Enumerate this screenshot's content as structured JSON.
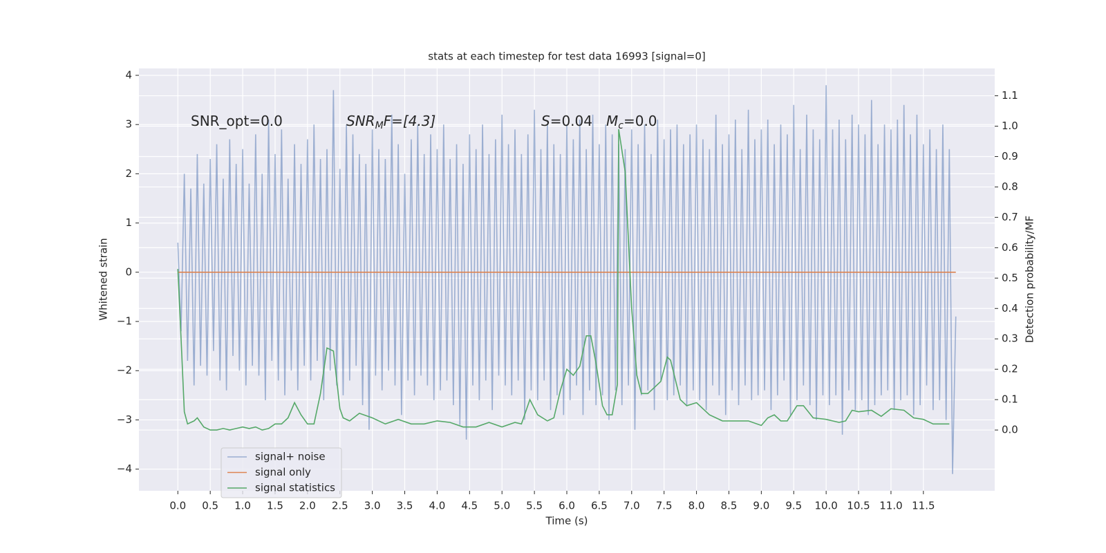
{
  "chart_data": {
    "type": "line",
    "title": "stats at each timestep for test data 16993 [signal=0]",
    "xlabel": "Time (s)",
    "ylabel": "Whitened strain",
    "y2label": "Detection probability/MF",
    "annotations": [
      [
        "SNR_opt=0.0"
      ],
      [
        "SNR",
        "M",
        "F=[4.3]"
      ],
      [
        "S",
        "=0.04"
      ],
      [
        "M",
        "c",
        "=0.0"
      ]
    ],
    "grid": true,
    "legend": "lower left",
    "background": "#eaeaf2",
    "xlim": [
      -0.6,
      12.6
    ],
    "ylim": [
      -4.44,
      4.14
    ],
    "y2lim": [
      -0.2,
      1.19
    ],
    "xticks": [
      {
        "value": 0,
        "label": "0.0"
      },
      0.5,
      {
        "value": 1,
        "label": "1.0"
      },
      1.5,
      {
        "value": 2,
        "label": "2.0"
      },
      2.5,
      {
        "value": 3,
        "label": "3.0"
      },
      3.5,
      {
        "value": 4,
        "label": "4.0"
      },
      4.5,
      {
        "value": 5,
        "label": "5.0"
      },
      5.5,
      {
        "value": 6,
        "label": "6.0"
      },
      6.5,
      {
        "value": 7,
        "label": "7.0"
      },
      7.5,
      {
        "value": 8,
        "label": "8.0"
      },
      8.5,
      {
        "value": 9,
        "label": "9.0"
      },
      9.5,
      {
        "value": 10,
        "label": "10.0"
      },
      10.5,
      {
        "value": 11,
        "label": "11.0"
      },
      11.5
    ],
    "yticks": [
      {
        "value": -4,
        "label": "−4"
      },
      {
        "value": -3,
        "label": "−3"
      },
      {
        "value": -2,
        "label": "−2"
      },
      {
        "value": -1,
        "label": "−1"
      },
      0,
      1,
      2,
      3,
      4
    ],
    "y2ticks": [
      {
        "value": 0,
        "label": "0.0"
      },
      0.1,
      0.2,
      0.3,
      0.4,
      0.5,
      0.6,
      0.7,
      0.8,
      0.9,
      {
        "value": 1,
        "label": "1.0"
      },
      1.1
    ],
    "series": [
      {
        "name": "signal+ noise",
        "color": "#4c72b0",
        "opacity": 0.5,
        "x": [
          0,
          0.05,
          0.1,
          0.15,
          0.2,
          0.25,
          0.3,
          0.35,
          0.4,
          0.45,
          0.5,
          0.55,
          0.6,
          0.65,
          0.7,
          0.75,
          0.8,
          0.85,
          0.9,
          0.95,
          1,
          1.05,
          1.1,
          1.15,
          1.2,
          1.25,
          1.3,
          1.35,
          1.4,
          1.45,
          1.5,
          1.55,
          1.6,
          1.65,
          1.7,
          1.75,
          1.8,
          1.85,
          1.9,
          1.95,
          2,
          2.05,
          2.1,
          2.15,
          2.2,
          2.25,
          2.3,
          2.35,
          2.4,
          2.45,
          2.5,
          2.55,
          2.6,
          2.65,
          2.7,
          2.75,
          2.8,
          2.85,
          2.9,
          2.95,
          3,
          3.05,
          3.1,
          3.15,
          3.2,
          3.25,
          3.3,
          3.35,
          3.4,
          3.45,
          3.5,
          3.55,
          3.6,
          3.65,
          3.7,
          3.75,
          3.8,
          3.85,
          3.9,
          3.95,
          4,
          4.05,
          4.1,
          4.15,
          4.2,
          4.25,
          4.3,
          4.35,
          4.4,
          4.45,
          4.5,
          4.55,
          4.6,
          4.65,
          4.7,
          4.75,
          4.8,
          4.85,
          4.9,
          4.95,
          5,
          5.05,
          5.1,
          5.15,
          5.2,
          5.25,
          5.3,
          5.35,
          5.4,
          5.45,
          5.5,
          5.55,
          5.6,
          5.65,
          5.7,
          5.75,
          5.8,
          5.85,
          5.9,
          5.95,
          6,
          6.05,
          6.1,
          6.15,
          6.2,
          6.25,
          6.3,
          6.35,
          6.4,
          6.45,
          6.5,
          6.55,
          6.6,
          6.65,
          6.7,
          6.75,
          6.8,
          6.85,
          6.9,
          6.95,
          7,
          7.05,
          7.1,
          7.15,
          7.2,
          7.25,
          7.3,
          7.35,
          7.4,
          7.45,
          7.5,
          7.55,
          7.6,
          7.65,
          7.7,
          7.75,
          7.8,
          7.85,
          7.9,
          7.95,
          8,
          8.05,
          8.1,
          8.15,
          8.2,
          8.25,
          8.3,
          8.35,
          8.4,
          8.45,
          8.5,
          8.55,
          8.6,
          8.65,
          8.7,
          8.75,
          8.8,
          8.85,
          8.9,
          8.95,
          9,
          9.05,
          9.1,
          9.15,
          9.2,
          9.25,
          9.3,
          9.35,
          9.4,
          9.45,
          9.5,
          9.55,
          9.6,
          9.65,
          9.7,
          9.75,
          9.8,
          9.85,
          9.9,
          9.95,
          10,
          10.05,
          10.1,
          10.15,
          10.2,
          10.25,
          10.3,
          10.35,
          10.4,
          10.45,
          10.5,
          10.55,
          10.6,
          10.65,
          10.7,
          10.75,
          10.8,
          10.85,
          10.9,
          10.95,
          11,
          11.05,
          11.1,
          11.15,
          11.2,
          11.25,
          11.3,
          11.35,
          11.4,
          11.45,
          11.5,
          11.55,
          11.6,
          11.65,
          11.7,
          11.75,
          11.8,
          11.85,
          11.9,
          11.95,
          12
        ],
        "values": [
          0.6,
          -1.2,
          2.0,
          -1.8,
          1.7,
          -2.3,
          2.4,
          -1.9,
          1.8,
          -2.1,
          2.3,
          -1.6,
          2.6,
          -2.2,
          1.9,
          -2.4,
          2.7,
          -1.7,
          2.2,
          -2.0,
          2.5,
          -2.3,
          1.8,
          -1.9,
          2.8,
          -2.1,
          2.0,
          -2.6,
          3.1,
          -1.8,
          2.4,
          -2.2,
          2.9,
          -2.5,
          1.9,
          -2.0,
          2.6,
          -2.4,
          2.2,
          -1.9,
          2.7,
          -2.2,
          3.0,
          -1.8,
          2.3,
          -2.6,
          2.5,
          -2.0,
          3.7,
          -2.3,
          2.1,
          -2.5,
          3.0,
          -2.2,
          2.8,
          -1.9,
          2.4,
          -2.7,
          2.2,
          -3.2,
          2.9,
          -2.1,
          2.5,
          -2.4,
          2.3,
          -2.0,
          3.2,
          -2.3,
          2.6,
          -2.9,
          2.0,
          -2.2,
          2.7,
          -2.5,
          3.0,
          -2.1,
          2.4,
          -2.3,
          2.8,
          -2.6,
          2.5,
          -2.4,
          3.0,
          -2.2,
          2.3,
          -2.7,
          2.6,
          -3.1,
          2.2,
          -3.4,
          2.8,
          -2.3,
          2.5,
          -2.6,
          3.0,
          -2.2,
          2.4,
          -2.8,
          2.7,
          -2.1,
          3.2,
          -2.3,
          2.6,
          -2.5,
          2.9,
          -2.2,
          2.4,
          -3.0,
          2.8,
          -2.4,
          3.3,
          -2.6,
          2.5,
          -2.2,
          3.0,
          -2.8,
          2.6,
          -2.5,
          2.4,
          -2.9,
          3.0,
          -2.6,
          2.7,
          -2.3,
          3.1,
          -2.9,
          2.5,
          -2.4,
          3.2,
          -2.7,
          2.6,
          -2.5,
          3.0,
          -3.0,
          2.8,
          -2.4,
          2.6,
          -2.7,
          2.5,
          -2.3,
          2.9,
          -3.2,
          2.6,
          -2.5,
          3.0,
          -2.4,
          2.4,
          -2.8,
          3.1,
          -2.2,
          2.7,
          -2.6,
          2.9,
          -2.5,
          3.0,
          -2.3,
          2.6,
          -2.7,
          2.8,
          -2.4,
          3.0,
          -2.6,
          2.7,
          -2.8,
          2.5,
          -2.3,
          3.2,
          -2.5,
          2.6,
          -2.9,
          2.8,
          -2.4,
          3.1,
          -2.7,
          2.5,
          -2.3,
          3.3,
          -2.6,
          2.7,
          -2.5,
          2.9,
          -2.4,
          3.1,
          -2.8,
          2.6,
          -2.5,
          3.0,
          -2.2,
          2.8,
          -2.9,
          3.4,
          -2.6,
          2.5,
          -2.3,
          3.2,
          -2.7,
          2.9,
          -3.0,
          2.7,
          -2.5,
          3.8,
          -2.7,
          2.9,
          -2.5,
          3.1,
          -3.3,
          2.7,
          -2.4,
          3.2,
          -2.8,
          3.0,
          -2.6,
          2.8,
          -2.9,
          3.5,
          -2.7,
          2.6,
          -2.5,
          3.0,
          -2.4,
          2.9,
          -2.8,
          3.1,
          -2.6,
          3.4,
          -2.5,
          2.8,
          -2.9,
          3.2,
          -2.7,
          2.6,
          -2.3,
          2.9,
          -2.8,
          2.5,
          -2.6,
          3.0,
          -3.0,
          2.5,
          -4.1,
          -0.9
        ]
      },
      {
        "name": "signal only",
        "color": "#dd8452",
        "opacity": 1,
        "x": [
          0,
          12
        ],
        "values": [
          0,
          0
        ]
      },
      {
        "name": "signal statistics",
        "color": "#55a868",
        "opacity": 1,
        "axis": "y2",
        "x": [
          0,
          0.05,
          0.1,
          0.15,
          0.25,
          0.3,
          0.4,
          0.5,
          0.6,
          0.7,
          0.8,
          0.9,
          1.0,
          1.1,
          1.2,
          1.3,
          1.4,
          1.5,
          1.6,
          1.7,
          1.8,
          1.9,
          2.0,
          2.1,
          2.2,
          2.3,
          2.4,
          2.5,
          2.55,
          2.65,
          2.8,
          3.0,
          3.2,
          3.4,
          3.6,
          3.8,
          4.0,
          4.2,
          4.4,
          4.6,
          4.8,
          5.0,
          5.2,
          5.3,
          5.43,
          5.55,
          5.7,
          5.8,
          5.9,
          6.0,
          6.1,
          6.2,
          6.3,
          6.37,
          6.45,
          6.55,
          6.62,
          6.7,
          6.78,
          6.8,
          6.9,
          7.0,
          7.08,
          7.15,
          7.25,
          7.35,
          7.45,
          7.55,
          7.6,
          7.75,
          7.85,
          8.0,
          8.2,
          8.4,
          8.6,
          8.8,
          9.0,
          9.1,
          9.2,
          9.3,
          9.4,
          9.55,
          9.65,
          9.8,
          10.0,
          10.2,
          10.3,
          10.4,
          10.5,
          10.7,
          10.85,
          11.0,
          11.2,
          11.35,
          11.5,
          11.65,
          11.8,
          11.9
        ],
        "values": [
          0.53,
          0.3,
          0.06,
          0.02,
          0.03,
          0.04,
          0.01,
          0.0,
          0.0,
          0.005,
          0.0,
          0.005,
          0.01,
          0.005,
          0.01,
          0.0,
          0.005,
          0.02,
          0.02,
          0.04,
          0.09,
          0.05,
          0.02,
          0.02,
          0.12,
          0.27,
          0.26,
          0.07,
          0.04,
          0.03,
          0.055,
          0.04,
          0.02,
          0.035,
          0.02,
          0.02,
          0.03,
          0.025,
          0.01,
          0.01,
          0.025,
          0.01,
          0.025,
          0.02,
          0.1,
          0.05,
          0.03,
          0.04,
          0.13,
          0.2,
          0.18,
          0.21,
          0.31,
          0.31,
          0.22,
          0.08,
          0.05,
          0.05,
          0.15,
          0.99,
          0.85,
          0.4,
          0.18,
          0.12,
          0.12,
          0.14,
          0.16,
          0.24,
          0.23,
          0.1,
          0.08,
          0.09,
          0.05,
          0.03,
          0.03,
          0.03,
          0.015,
          0.04,
          0.05,
          0.03,
          0.03,
          0.08,
          0.08,
          0.04,
          0.035,
          0.025,
          0.03,
          0.065,
          0.06,
          0.065,
          0.045,
          0.07,
          0.065,
          0.04,
          0.035,
          0.02,
          0.02,
          0.02
        ]
      }
    ]
  }
}
